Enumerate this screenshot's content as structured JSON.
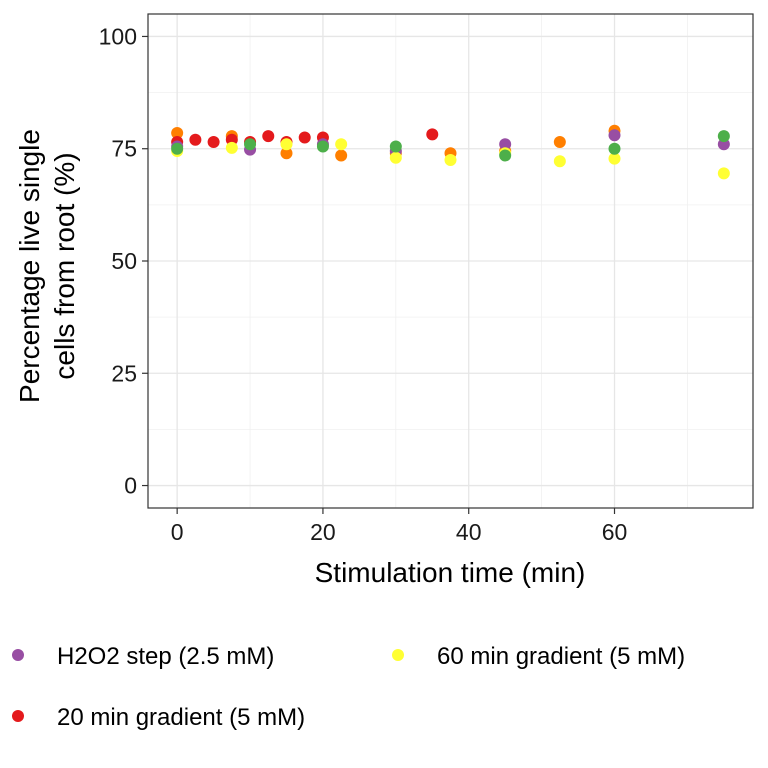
{
  "chart_data": {
    "type": "scatter",
    "xlabel": "Stimulation time (min)",
    "ylabel_lines": [
      "Percentage live single",
      "cells from root (%)"
    ],
    "xlim": [
      -4,
      79
    ],
    "ylim": [
      -5,
      105
    ],
    "x_ticks": [
      0,
      20,
      40,
      60
    ],
    "y_ticks": [
      0,
      25,
      50,
      75,
      100
    ],
    "x_minor_ticks": [
      10,
      30,
      50,
      70
    ],
    "y_minor_ticks": [
      12.5,
      37.5,
      62.5,
      87.5
    ],
    "grid": true,
    "legend_position": "bottom",
    "colors": {
      "purple": "#984ea3",
      "red": "#e41a1c",
      "yellow": "#ffff33",
      "orange": "#ff7f00",
      "green": "#4daf4a"
    },
    "legend": [
      {
        "label": "H2O2 step (2.5 mM)",
        "color": "#984ea3"
      },
      {
        "label": "60 min gradient (5 mM)",
        "color": "#ffff33"
      },
      {
        "label": "20 min gradient (5 mM)",
        "color": "#e41a1c"
      }
    ],
    "series": [
      {
        "color": "#ff7f00",
        "points": [
          [
            0,
            78.5
          ],
          [
            7.5,
            77.8
          ],
          [
            15,
            74
          ],
          [
            22.5,
            73.5
          ],
          [
            30,
            74
          ],
          [
            37.5,
            74
          ],
          [
            45,
            74.5
          ],
          [
            52.5,
            76.5
          ],
          [
            60,
            79
          ]
        ]
      },
      {
        "color": "#e41a1c",
        "points": [
          [
            0,
            76.5
          ],
          [
            2.5,
            77
          ],
          [
            5,
            76.5
          ],
          [
            7.5,
            77
          ],
          [
            10,
            76.5
          ],
          [
            12.5,
            77.8
          ],
          [
            15,
            76.5
          ],
          [
            17.5,
            77.5
          ],
          [
            20,
            77.5
          ],
          [
            35,
            78.2
          ]
        ]
      },
      {
        "color": "#984ea3",
        "points": [
          [
            0,
            75.5
          ],
          [
            10,
            74.8
          ],
          [
            20,
            76
          ],
          [
            30,
            74.5
          ],
          [
            45,
            76
          ],
          [
            60,
            78
          ],
          [
            75,
            76
          ]
        ]
      },
      {
        "color": "#ffff33",
        "points": [
          [
            0,
            74.5
          ],
          [
            7.5,
            75.2
          ],
          [
            15,
            76
          ],
          [
            22.5,
            76
          ],
          [
            30,
            73
          ],
          [
            37.5,
            72.5
          ],
          [
            45,
            74
          ],
          [
            52.5,
            72.2
          ],
          [
            60,
            72.8
          ],
          [
            75,
            69.5
          ]
        ]
      },
      {
        "color": "#4daf4a",
        "points": [
          [
            0,
            75
          ],
          [
            10,
            76
          ],
          [
            20,
            75.5
          ],
          [
            30,
            75.5
          ],
          [
            45,
            73.5
          ],
          [
            60,
            75
          ],
          [
            75,
            77.8
          ]
        ]
      }
    ]
  }
}
